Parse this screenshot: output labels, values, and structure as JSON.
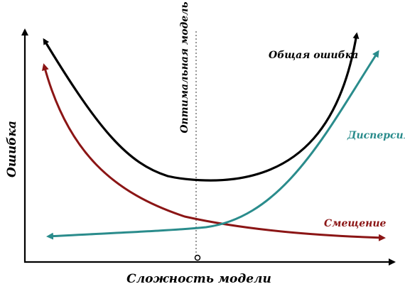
{
  "diagram": {
    "y_axis_label": "Ошибка",
    "x_axis_label": "Сложность модели",
    "optimal_label": "Оптимальная модель",
    "curves": [
      {
        "id": "total",
        "label": "Общая ошибка",
        "color": "#000000"
      },
      {
        "id": "variance",
        "label": "Дисперсия",
        "color": "#2a8c8c"
      },
      {
        "id": "bias",
        "label": "Смещение",
        "color": "#8b1515"
      }
    ],
    "axis_color": "#000000",
    "guide_color": "#777777"
  }
}
